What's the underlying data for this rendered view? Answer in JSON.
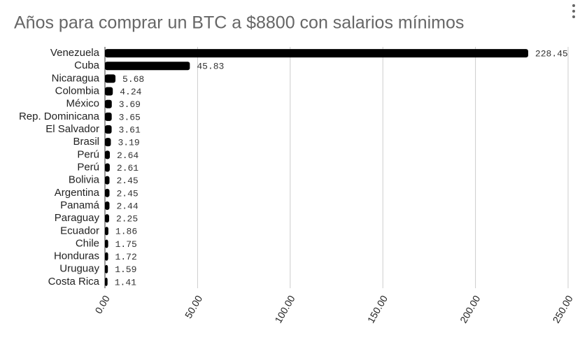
{
  "chart_data": {
    "type": "bar",
    "orientation": "horizontal",
    "title": "Años para comprar un BTC a $8800 con salarios mínimos",
    "categories": [
      "Venezuela",
      "Cuba",
      "Nicaragua",
      "Colombia",
      "México",
      "Rep. Dominicana",
      "El Salvador",
      "Brasil",
      "Perú",
      "Perú",
      "Bolivia",
      "Argentina",
      "Panamá",
      "Paraguay",
      "Ecuador",
      "Chile",
      "Honduras",
      "Uruguay",
      "Costa Rica"
    ],
    "values": [
      228.45,
      45.83,
      5.68,
      4.24,
      3.69,
      3.65,
      3.61,
      3.19,
      2.64,
      2.61,
      2.45,
      2.45,
      2.44,
      2.25,
      1.86,
      1.75,
      1.72,
      1.59,
      1.41
    ],
    "color": "#000000",
    "xlim": [
      0,
      250
    ],
    "xticks": [
      {
        "value": 0,
        "label": "0.00"
      },
      {
        "value": 50,
        "label": "50.00"
      },
      {
        "value": 100,
        "label": "100.00"
      },
      {
        "value": 150,
        "label": "150.00"
      },
      {
        "value": 200,
        "label": "200.00"
      },
      {
        "value": 250,
        "label": "250.00"
      }
    ],
    "grid": true
  }
}
